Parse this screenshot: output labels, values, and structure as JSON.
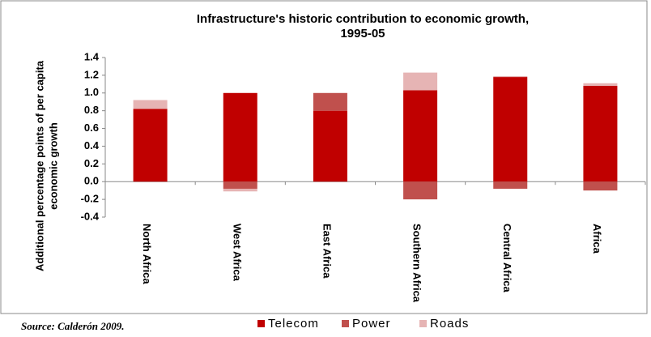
{
  "chart_data": {
    "type": "stacked_bar",
    "title": [
      "Infrastructure's  historic contribution to economic growth,",
      "1995-05"
    ],
    "y_label": [
      "Additional  percentage points of per capita",
      "economic growth"
    ],
    "source": "Source: Calderón 2009.",
    "categories": [
      "North Africa",
      "West Africa",
      "East Africa",
      "Southern Africa",
      "Central Africa",
      "Africa"
    ],
    "series": [
      {
        "name": "Telecom",
        "color": "#c00000",
        "values": [
          0.82,
          1.0,
          0.8,
          1.03,
          1.18,
          1.08
        ]
      },
      {
        "name": "Power",
        "color": "#c0504d",
        "values": [
          0,
          -0.08,
          0.2,
          -0.2,
          -0.08,
          -0.1
        ]
      },
      {
        "name": "Roads",
        "color": "#e6b4b4",
        "values": [
          0.1,
          -0.03,
          0,
          0.2,
          0.01,
          0.03
        ]
      }
    ],
    "ylim": [
      -0.4,
      1.4
    ],
    "yticks": [
      -0.4,
      -0.2,
      {
        "value": 0,
        "label": "0.0"
      },
      0.2,
      0.4,
      0.6,
      0.8,
      {
        "value": 1,
        "label": "1.0"
      },
      1.2,
      1.4
    ]
  }
}
